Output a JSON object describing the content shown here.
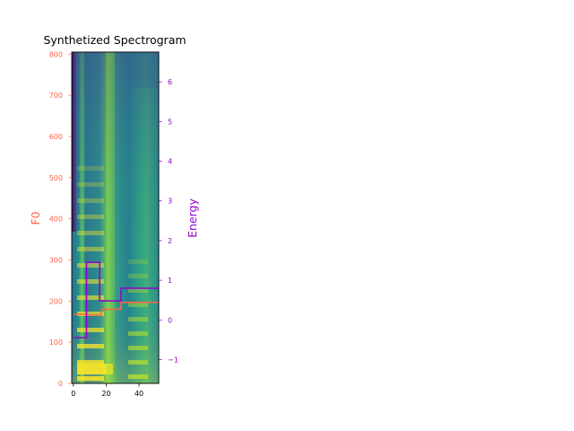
{
  "chart_data": {
    "type": "line",
    "title": "Synthetized Spectrogram",
    "xlabel": "",
    "y_left_label": "F0",
    "y_right_label": "Energy",
    "xlim": [
      -1,
      52
    ],
    "y_left_lim": [
      0,
      805
    ],
    "y_right_lim": [
      -1.6,
      6.75
    ],
    "x_ticks": [
      0,
      20,
      40
    ],
    "y_left_ticks": [
      0,
      100,
      200,
      300,
      400,
      500,
      600,
      700,
      800
    ],
    "y_right_ticks": [
      -1,
      0,
      1,
      2,
      3,
      4,
      5,
      6
    ],
    "y_right_tick_labels": [
      "−1",
      "0",
      "1",
      "2",
      "3",
      "4",
      "5",
      "6"
    ],
    "colors": {
      "f0": "#ff6347",
      "energy": "#9400d3"
    },
    "background": "spectrogram heatmap (viridis)",
    "series": [
      {
        "key": "f0",
        "axis": "left",
        "color": "#ff6347",
        "step_x": [
          0,
          8,
          17,
          29,
          31,
          52
        ],
        "step_y": [
          168,
          166,
          180,
          197,
          197,
          197
        ]
      },
      {
        "key": "energy",
        "axis": "right",
        "color": "#9400d3",
        "step_x": [
          0,
          8,
          16,
          29,
          31,
          52
        ],
        "step_y": [
          -0.45,
          1.45,
          0.48,
          0.8,
          0.8,
          0.8
        ]
      }
    ]
  }
}
